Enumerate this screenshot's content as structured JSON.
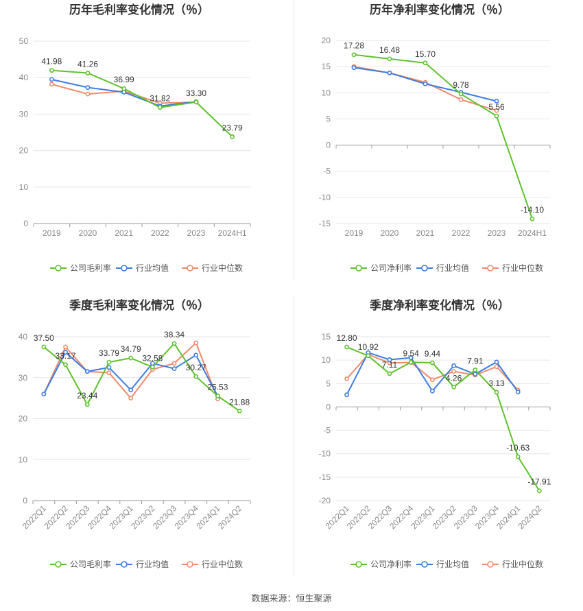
{
  "source": "数据来源：恒生聚源",
  "colors": {
    "company": "#5cc22a",
    "avg": "#3b7be6",
    "median": "#f28a6a",
    "grid": "#e6e6e6",
    "axis": "#999999"
  },
  "chart_data": [
    {
      "type": "line",
      "title": "历年毛利率变化情况（％）",
      "categories": [
        "2019",
        "2020",
        "2021",
        "2022",
        "2023",
        "2024H1"
      ],
      "ylim": [
        0,
        50
      ],
      "yticks": [
        0,
        10,
        20,
        30,
        40,
        50
      ],
      "grid": true,
      "legend": "bottom",
      "series": [
        {
          "name": "公司毛利率",
          "values": [
            41.98,
            41.26,
            36.99,
            31.82,
            33.3,
            23.79
          ],
          "labels": [
            "41.98",
            "41.26",
            "36.99",
            "31.82",
            "33.30",
            "23.79"
          ]
        },
        {
          "name": "行业均值",
          "values": [
            39.5,
            37.3,
            36.0,
            32.2,
            33.4,
            null
          ]
        },
        {
          "name": "行业中位数",
          "values": [
            38.2,
            35.5,
            36.3,
            33.0,
            33.3,
            null
          ]
        }
      ]
    },
    {
      "type": "line",
      "title": "历年净利率变化情况（％）",
      "categories": [
        "2019",
        "2020",
        "2021",
        "2022",
        "2023",
        "2024H1"
      ],
      "ylim": [
        -15,
        20
      ],
      "yticks": [
        -15,
        -10,
        -5,
        0,
        5,
        10,
        15,
        20
      ],
      "grid": true,
      "legend": "bottom",
      "series": [
        {
          "name": "公司净利率",
          "values": [
            17.28,
            16.48,
            15.7,
            9.78,
            5.56,
            -14.1
          ],
          "labels": [
            "17.28",
            "16.48",
            "15.70",
            "9.78",
            "5.56",
            "-14.10"
          ]
        },
        {
          "name": "行业均值",
          "values": [
            14.8,
            13.8,
            11.7,
            10.1,
            8.4,
            null
          ]
        },
        {
          "name": "行业中位数",
          "values": [
            15.0,
            13.8,
            12.0,
            8.7,
            6.6,
            null
          ]
        }
      ]
    },
    {
      "type": "line",
      "title": "季度毛利率变化情况（％）",
      "categories": [
        "2022Q1",
        "2022Q2",
        "2022Q3",
        "2022Q4",
        "2023Q1",
        "2023Q2",
        "2023Q3",
        "2023Q4",
        "2024Q1",
        "2024Q2"
      ],
      "ylim": [
        0,
        40
      ],
      "yticks": [
        0,
        10,
        20,
        30,
        40
      ],
      "grid": true,
      "legend": "bottom",
      "series": [
        {
          "name": "公司毛利率",
          "values": [
            37.5,
            33.17,
            23.44,
            33.79,
            34.79,
            32.58,
            38.34,
            30.27,
            25.53,
            21.88
          ],
          "labels": [
            "37.50",
            "33.17",
            "23.44",
            "33.79",
            "34.79",
            "32.58",
            "38.34",
            "30.27",
            "25.53",
            "21.88"
          ]
        },
        {
          "name": "行业均值",
          "values": [
            26.0,
            36.2,
            31.5,
            32.5,
            27.0,
            33.5,
            32.2,
            35.5,
            25.5,
            null
          ]
        },
        {
          "name": "行业中位数",
          "values": [
            26.0,
            37.5,
            31.5,
            31.2,
            25.0,
            32.0,
            33.5,
            38.5,
            24.8,
            null
          ]
        }
      ]
    },
    {
      "type": "line",
      "title": "季度净利率变化情况（％）",
      "categories": [
        "2022Q1",
        "2022Q2",
        "2022Q3",
        "2022Q4",
        "2023Q1",
        "2023Q2",
        "2023Q3",
        "2023Q4",
        "2024Q1",
        "2024Q2"
      ],
      "ylim": [
        -20,
        15
      ],
      "yticks": [
        -20,
        -15,
        -10,
        -5,
        0,
        5,
        10,
        15
      ],
      "grid": true,
      "legend": "bottom",
      "series": [
        {
          "name": "公司净利率",
          "values": [
            12.8,
            10.92,
            7.11,
            9.54,
            9.44,
            4.26,
            7.91,
            3.13,
            -10.63,
            -17.91
          ],
          "labels": [
            "12.80",
            "10.92",
            "7.11",
            "9.54",
            "9.44",
            "4.26",
            "7.91",
            "3.13",
            "-10.63",
            "-17.91"
          ]
        },
        {
          "name": "行业均值",
          "values": [
            2.6,
            11.6,
            10.1,
            10.5,
            3.4,
            8.8,
            7.0,
            9.6,
            3.2,
            null
          ]
        },
        {
          "name": "行业中位数",
          "values": [
            6.0,
            11.2,
            9.4,
            9.5,
            5.8,
            7.6,
            6.8,
            8.6,
            3.6,
            null
          ]
        }
      ]
    }
  ]
}
